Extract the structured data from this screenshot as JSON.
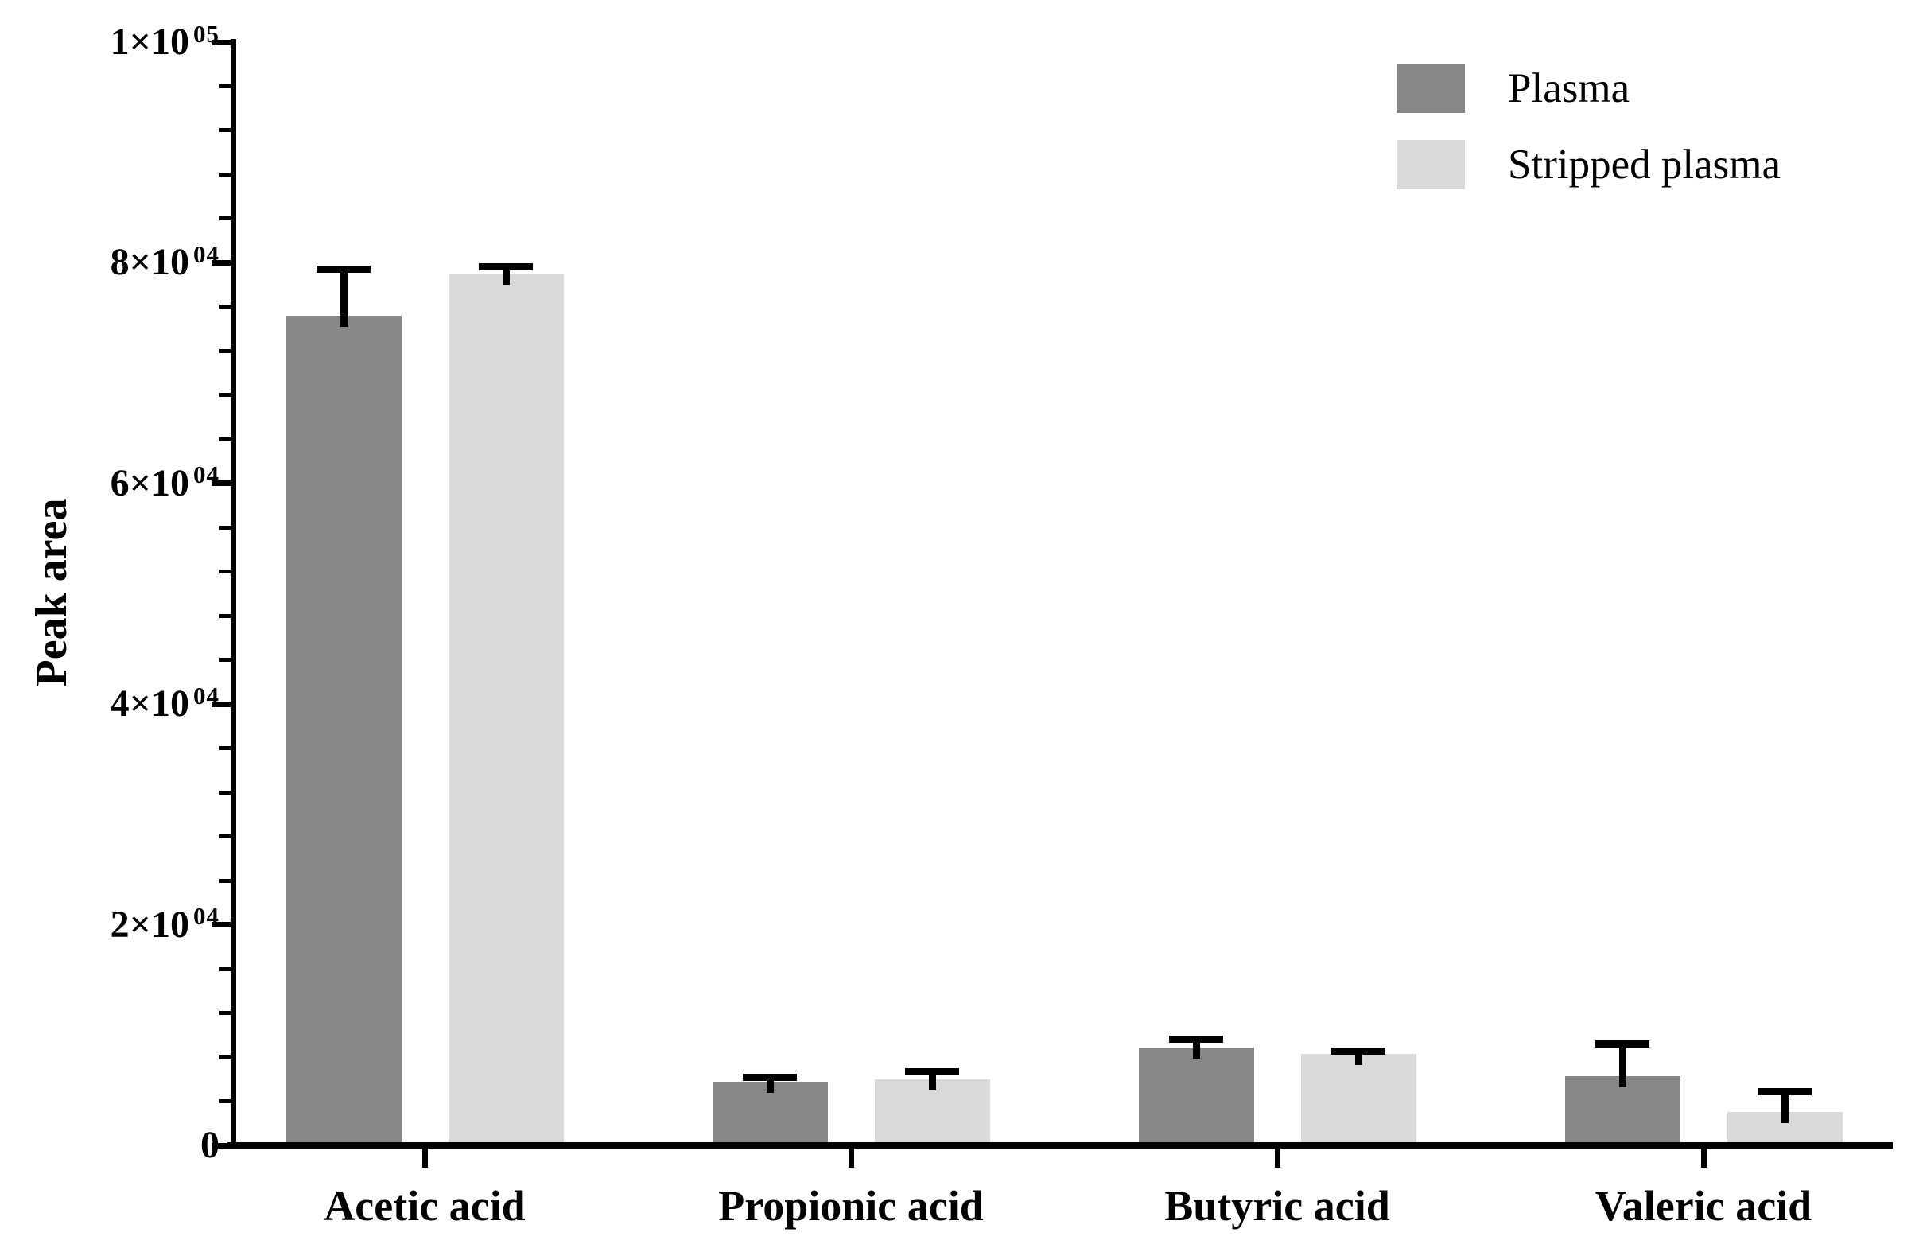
{
  "figure": {
    "background_color": "#ffffff",
    "axis_color": "#000000",
    "legend_position": "top-right"
  },
  "chart_data": {
    "type": "bar",
    "title": "",
    "xlabel": "",
    "ylabel": "Peak area",
    "categories": [
      "Acetic acid",
      "Propionic acid",
      "Butyric acid",
      "Valeric acid"
    ],
    "series": [
      {
        "name": "Plasma",
        "color": "#878787",
        "values": [
          75200,
          5800,
          8900,
          6300
        ],
        "errors_plus": [
          4200,
          350,
          700,
          2900
        ]
      },
      {
        "name": "Stripped plasma",
        "color": "#d9d9d9",
        "values": [
          79000,
          6000,
          8300,
          3000
        ],
        "errors_plus": [
          650,
          650,
          250,
          1900
        ]
      }
    ],
    "ylim": [
      0,
      100000
    ],
    "y_major_step": 20000,
    "y_minor_step": 4000,
    "y_tick_labels": [
      {
        "value": 100000,
        "mantissa": "1×10",
        "exponent": "05"
      },
      {
        "value": 80000,
        "mantissa": "8×10",
        "exponent": "04"
      },
      {
        "value": 60000,
        "mantissa": "6×10",
        "exponent": "04"
      },
      {
        "value": 40000,
        "mantissa": "4×10",
        "exponent": "04"
      },
      {
        "value": 20000,
        "mantissa": "2×10",
        "exponent": "04"
      },
      {
        "value": 0,
        "text": "0"
      }
    ],
    "error_bars": "upper-only",
    "grid": false,
    "legend_position": "top-right"
  }
}
